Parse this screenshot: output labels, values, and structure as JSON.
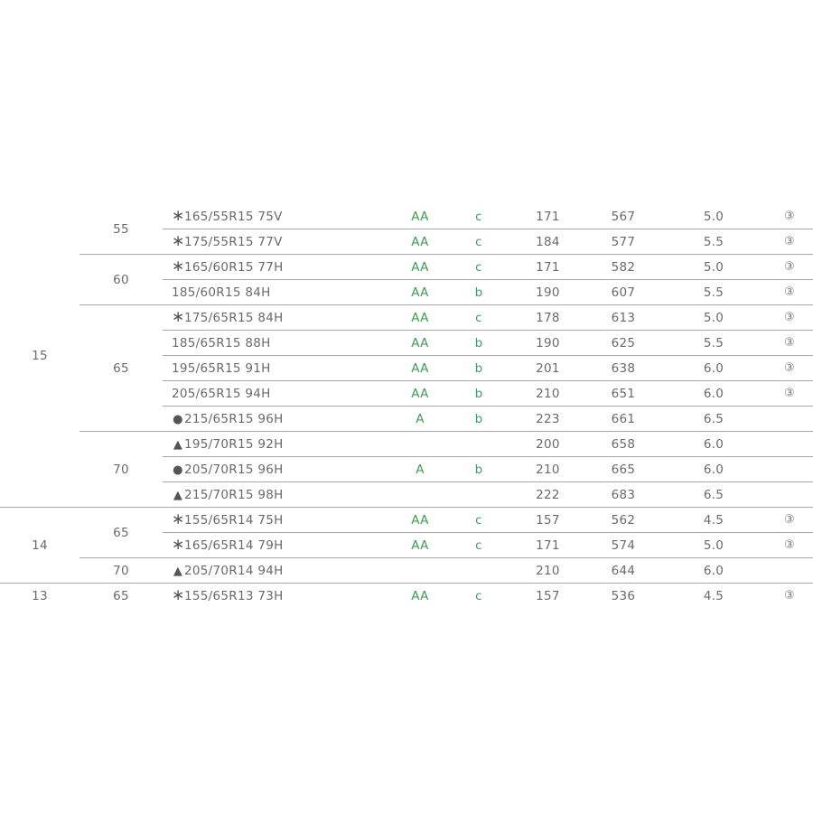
{
  "colors": {
    "grade_rolling": "#3f9a55",
    "grade_grip": "#3a9c7a",
    "text": "#6a6a6a",
    "rule": "#a8a8a8"
  },
  "marks": {
    "asterisk": "∗",
    "circle": "●",
    "triangle": "▲"
  },
  "groups": [
    {
      "rim": "15",
      "aspects": [
        {
          "aspect": "55",
          "rows": [
            {
              "mark": "asterisk",
              "size": "165/55R15 75V",
              "rolling": "AA",
              "grip": "c",
              "load": "171",
              "diameter": "567",
              "rim_width": "5.0",
              "note": "③"
            },
            {
              "mark": "asterisk",
              "size": "175/55R15 77V",
              "rolling": "AA",
              "grip": "c",
              "load": "184",
              "diameter": "577",
              "rim_width": "5.5",
              "note": "③"
            }
          ]
        },
        {
          "aspect": "60",
          "rows": [
            {
              "mark": "asterisk",
              "size": "165/60R15 77H",
              "rolling": "AA",
              "grip": "c",
              "load": "171",
              "diameter": "582",
              "rim_width": "5.0",
              "note": "③"
            },
            {
              "mark": "",
              "size": "185/60R15 84H",
              "rolling": "AA",
              "grip": "b",
              "load": "190",
              "diameter": "607",
              "rim_width": "5.5",
              "note": "③"
            }
          ]
        },
        {
          "aspect": "65",
          "rows": [
            {
              "mark": "asterisk",
              "size": "175/65R15 84H",
              "rolling": "AA",
              "grip": "c",
              "load": "178",
              "diameter": "613",
              "rim_width": "5.0",
              "note": "③"
            },
            {
              "mark": "",
              "size": "185/65R15 88H",
              "rolling": "AA",
              "grip": "b",
              "load": "190",
              "diameter": "625",
              "rim_width": "5.5",
              "note": "③"
            },
            {
              "mark": "",
              "size": "195/65R15 91H",
              "rolling": "AA",
              "grip": "b",
              "load": "201",
              "diameter": "638",
              "rim_width": "6.0",
              "note": "③"
            },
            {
              "mark": "",
              "size": "205/65R15 94H",
              "rolling": "AA",
              "grip": "b",
              "load": "210",
              "diameter": "651",
              "rim_width": "6.0",
              "note": "③"
            },
            {
              "mark": "circle",
              "size": "215/65R15 96H",
              "rolling": "A",
              "grip": "b",
              "load": "223",
              "diameter": "661",
              "rim_width": "6.5",
              "note": ""
            }
          ]
        },
        {
          "aspect": "70",
          "rows": [
            {
              "mark": "triangle",
              "size": "195/70R15 92H",
              "rolling": "",
              "grip": "",
              "load": "200",
              "diameter": "658",
              "rim_width": "6.0",
              "note": ""
            },
            {
              "mark": "circle",
              "size": "205/70R15 96H",
              "rolling": "A",
              "grip": "b",
              "load": "210",
              "diameter": "665",
              "rim_width": "6.0",
              "note": ""
            },
            {
              "mark": "triangle",
              "size": "215/70R15 98H",
              "rolling": "",
              "grip": "",
              "load": "222",
              "diameter": "683",
              "rim_width": "6.5",
              "note": ""
            }
          ]
        }
      ]
    },
    {
      "rim": "14",
      "aspects": [
        {
          "aspect": "65",
          "rows": [
            {
              "mark": "asterisk",
              "size": "155/65R14 75H",
              "rolling": "AA",
              "grip": "c",
              "load": "157",
              "diameter": "562",
              "rim_width": "4.5",
              "note": "③"
            },
            {
              "mark": "asterisk",
              "size": "165/65R14 79H",
              "rolling": "AA",
              "grip": "c",
              "load": "171",
              "diameter": "574",
              "rim_width": "5.0",
              "note": "③"
            }
          ]
        },
        {
          "aspect": "70",
          "rows": [
            {
              "mark": "triangle",
              "size": "205/70R14 94H",
              "rolling": "",
              "grip": "",
              "load": "210",
              "diameter": "644",
              "rim_width": "6.0",
              "note": ""
            }
          ]
        }
      ]
    },
    {
      "rim": "13",
      "aspects": [
        {
          "aspect": "65",
          "rows": [
            {
              "mark": "asterisk",
              "size": "155/65R13 73H",
              "rolling": "AA",
              "grip": "c",
              "load": "157",
              "diameter": "536",
              "rim_width": "4.5",
              "note": "③"
            }
          ]
        }
      ]
    }
  ]
}
